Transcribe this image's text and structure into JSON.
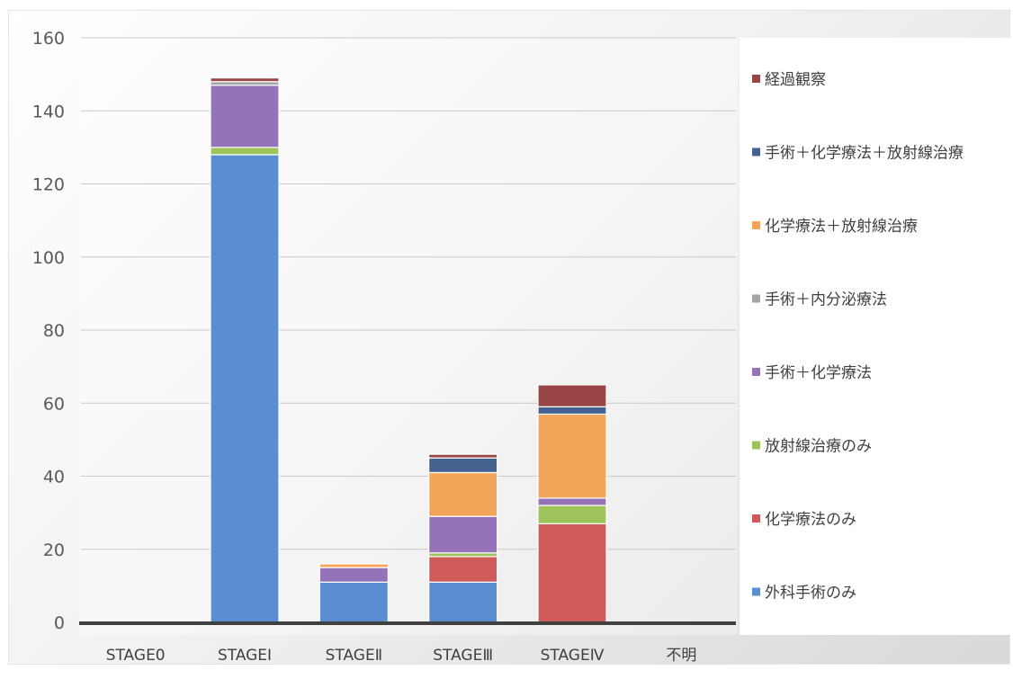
{
  "chart_data": {
    "type": "bar",
    "stacked": true,
    "categories": [
      "STAGE0",
      "STAGEⅠ",
      "STAGEⅡ",
      "STAGEⅢ",
      "STAGEⅣ",
      "不明"
    ],
    "ylim": [
      0,
      160
    ],
    "yticks": [
      0,
      20,
      40,
      60,
      80,
      100,
      120,
      140,
      160
    ],
    "grid": true,
    "legend_position": "right",
    "series": [
      {
        "name": "外科手術のみ",
        "color": "#5b8ed0",
        "values": [
          0,
          128,
          11,
          11,
          0,
          0
        ]
      },
      {
        "name": "化学療法のみ",
        "color": "#d05a5a",
        "values": [
          0,
          0,
          0,
          7,
          27,
          0
        ]
      },
      {
        "name": "放射線治療のみ",
        "color": "#9dc35a",
        "values": [
          0,
          2,
          0,
          1,
          5,
          0
        ]
      },
      {
        "name": "手術＋化学療法",
        "color": "#9473b8",
        "values": [
          0,
          17,
          4,
          10,
          2,
          0
        ]
      },
      {
        "name": "手術＋内分泌療法",
        "color": "#a6a6a6",
        "values": [
          0,
          1,
          0,
          0,
          0,
          0
        ]
      },
      {
        "name": "化学療法＋放射線治療",
        "color": "#f5a55a",
        "values": [
          0,
          0,
          1,
          12,
          23,
          0
        ]
      },
      {
        "name": "手術＋化学療法＋放射線治療",
        "color": "#44628f",
        "values": [
          0,
          0,
          0,
          4,
          2,
          0
        ]
      },
      {
        "name": "経過観察",
        "color": "#9a4545",
        "values": [
          0,
          1,
          0,
          1,
          6,
          0
        ]
      }
    ]
  }
}
